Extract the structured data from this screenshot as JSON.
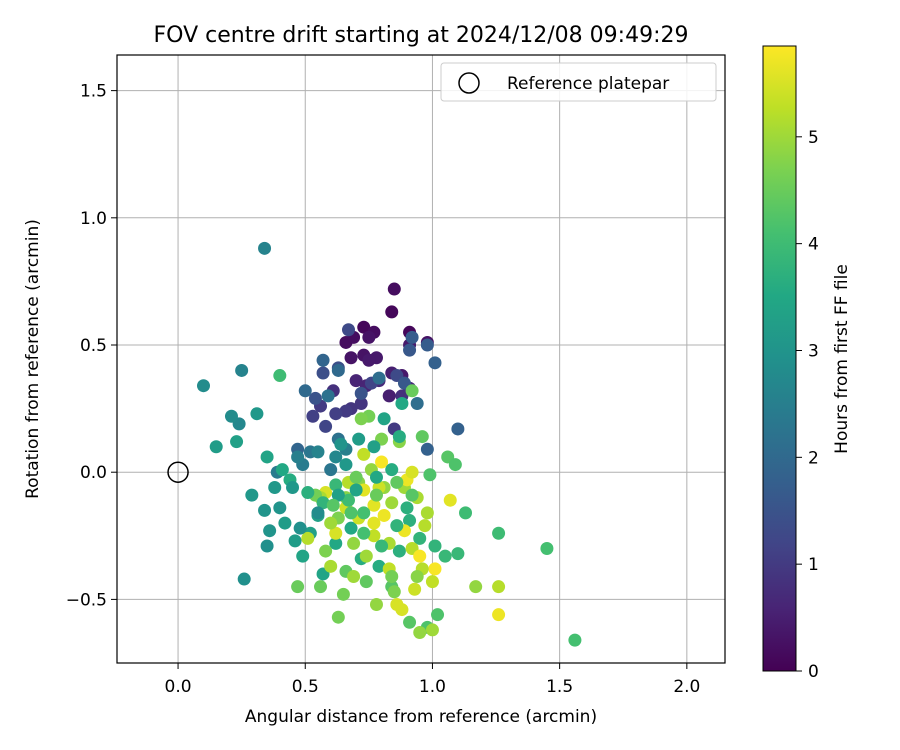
{
  "chart_data": {
    "type": "scatter",
    "title": "FOV centre drift starting at 2024/12/08 09:49:29",
    "xlabel": "Angular distance from reference (arcmin)",
    "ylabel": "Rotation from reference (arcmin)",
    "xlim": [
      -0.24,
      2.15
    ],
    "ylim": [
      -0.75,
      1.64
    ],
    "x_ticks": [
      0.0,
      0.5,
      1.0,
      1.5,
      2.0
    ],
    "x_tick_labels": [
      "0.0",
      "0.5",
      "1.0",
      "1.5",
      "2.0"
    ],
    "y_ticks": [
      -0.5,
      0.0,
      0.5,
      1.0,
      1.5
    ],
    "y_tick_labels": [
      "−0.5",
      "0.0",
      "0.5",
      "1.0",
      "1.5"
    ],
    "grid": true,
    "legend": {
      "placement": "top-right",
      "entries": [
        "Reference platepar"
      ]
    },
    "reference_point": {
      "x": 0.0,
      "y": 0.0,
      "marker": "open-circle"
    },
    "colorbar": {
      "label": "Hours from first FF file",
      "range": [
        0,
        5.85
      ],
      "ticks": [
        0,
        1,
        2,
        3,
        4,
        5
      ],
      "tick_labels": [
        "0",
        "1",
        "2",
        "3",
        "4",
        "5"
      ],
      "colormap": "viridis"
    },
    "points": [
      [
        0.85,
        0.72,
        0.2
      ],
      [
        0.84,
        0.63,
        0.1
      ],
      [
        0.73,
        0.57,
        0.1
      ],
      [
        0.91,
        0.55,
        0.1
      ],
      [
        0.77,
        0.55,
        0.2
      ],
      [
        0.66,
        0.51,
        0.2
      ],
      [
        0.69,
        0.53,
        0.2
      ],
      [
        0.75,
        0.53,
        0.3
      ],
      [
        0.98,
        0.51,
        0.3
      ],
      [
        0.91,
        0.5,
        0.4
      ],
      [
        0.68,
        0.45,
        0.3
      ],
      [
        0.73,
        0.46,
        0.3
      ],
      [
        0.78,
        0.45,
        0.4
      ],
      [
        0.75,
        0.44,
        0.4
      ],
      [
        0.88,
        0.38,
        0.4
      ],
      [
        0.84,
        0.39,
        0.5
      ],
      [
        0.83,
        0.3,
        0.5
      ],
      [
        0.7,
        0.36,
        0.6
      ],
      [
        0.74,
        0.34,
        0.6
      ],
      [
        0.79,
        0.36,
        0.7
      ],
      [
        0.91,
        0.33,
        0.7
      ],
      [
        0.88,
        0.3,
        0.8
      ],
      [
        0.61,
        0.32,
        0.8
      ],
      [
        0.68,
        0.25,
        0.9
      ],
      [
        0.72,
        0.27,
        0.9
      ],
      [
        0.56,
        0.26,
        1.0
      ],
      [
        0.66,
        0.24,
        1.0
      ],
      [
        0.62,
        0.23,
        1.1
      ],
      [
        0.53,
        0.22,
        1.1
      ],
      [
        0.85,
        0.17,
        1.0
      ],
      [
        0.58,
        0.18,
        1.2
      ],
      [
        0.76,
        0.35,
        1.2
      ],
      [
        0.86,
        0.38,
        1.3
      ],
      [
        0.67,
        0.56,
        1.3
      ],
      [
        0.63,
        0.41,
        1.4
      ],
      [
        0.57,
        0.39,
        1.4
      ],
      [
        0.54,
        0.29,
        1.5
      ],
      [
        0.72,
        0.31,
        1.5
      ],
      [
        0.89,
        0.35,
        1.6
      ],
      [
        0.91,
        0.48,
        1.6
      ],
      [
        0.98,
        0.5,
        1.7
      ],
      [
        0.92,
        0.53,
        1.7
      ],
      [
        1.1,
        0.17,
        1.8
      ],
      [
        1.01,
        0.43,
        1.8
      ],
      [
        0.98,
        0.09,
        1.8
      ],
      [
        0.47,
        0.09,
        1.9
      ],
      [
        0.57,
        0.44,
        1.9
      ],
      [
        0.5,
        0.32,
        2.0
      ],
      [
        0.63,
        0.4,
        2.0
      ],
      [
        0.79,
        0.37,
        2.1
      ],
      [
        0.94,
        0.27,
        2.1
      ],
      [
        0.63,
        0.13,
        2.2
      ],
      [
        0.59,
        0.3,
        2.2
      ],
      [
        0.52,
        0.08,
        2.3
      ],
      [
        0.6,
        0.01,
        2.3
      ],
      [
        0.39,
        0.0,
        2.4
      ],
      [
        0.49,
        0.03,
        2.4
      ],
      [
        0.66,
        0.09,
        2.5
      ],
      [
        0.34,
        0.88,
        2.6
      ],
      [
        0.25,
        0.4,
        2.6
      ],
      [
        0.24,
        0.19,
        2.7
      ],
      [
        0.21,
        0.22,
        2.8
      ],
      [
        0.1,
        0.34,
        2.8
      ],
      [
        0.26,
        -0.42,
        2.9
      ],
      [
        0.35,
        -0.29,
        2.9
      ],
      [
        0.36,
        -0.23,
        3.0
      ],
      [
        0.34,
        -0.15,
        3.0
      ],
      [
        0.29,
        -0.09,
        3.1
      ],
      [
        0.38,
        -0.06,
        3.1
      ],
      [
        0.42,
        -0.2,
        3.2
      ],
      [
        0.46,
        -0.27,
        3.2
      ],
      [
        0.52,
        -0.24,
        3.3
      ],
      [
        0.55,
        -0.17,
        3.3
      ],
      [
        0.49,
        -0.33,
        3.4
      ],
      [
        0.57,
        -0.4,
        3.4
      ],
      [
        0.62,
        -0.28,
        3.5
      ],
      [
        0.68,
        -0.22,
        3.5
      ],
      [
        0.72,
        -0.34,
        3.6
      ],
      [
        0.79,
        -0.37,
        3.6
      ],
      [
        0.87,
        -0.31,
        3.7
      ],
      [
        0.91,
        -0.19,
        3.7
      ],
      [
        0.95,
        -0.26,
        3.8
      ],
      [
        1.01,
        -0.29,
        3.8
      ],
      [
        1.05,
        -0.33,
        3.9
      ],
      [
        1.1,
        -0.32,
        3.9
      ],
      [
        1.13,
        -0.16,
        4.0
      ],
      [
        1.26,
        -0.24,
        4.0
      ],
      [
        1.45,
        -0.3,
        4.1
      ],
      [
        1.56,
        -0.66,
        4.1
      ],
      [
        1.02,
        -0.56,
        4.2
      ],
      [
        0.98,
        -0.61,
        4.2
      ],
      [
        0.91,
        -0.59,
        4.3
      ],
      [
        0.84,
        -0.45,
        4.3
      ],
      [
        0.74,
        -0.43,
        4.4
      ],
      [
        0.66,
        -0.39,
        4.4
      ],
      [
        0.56,
        -0.45,
        4.5
      ],
      [
        0.47,
        -0.45,
        4.5
      ],
      [
        0.63,
        -0.57,
        4.6
      ],
      [
        0.65,
        -0.48,
        4.6
      ],
      [
        0.58,
        -0.31,
        4.7
      ],
      [
        0.63,
        -0.18,
        4.7
      ],
      [
        0.66,
        -0.1,
        4.8
      ],
      [
        0.71,
        -0.04,
        4.8
      ],
      [
        0.76,
        0.01,
        4.9
      ],
      [
        0.81,
        -0.06,
        4.9
      ],
      [
        0.84,
        -0.12,
        5.0
      ],
      [
        0.89,
        -0.06,
        5.0
      ],
      [
        0.94,
        -0.1,
        5.1
      ],
      [
        0.98,
        -0.16,
        5.1
      ],
      [
        0.97,
        -0.21,
        5.2
      ],
      [
        0.92,
        -0.3,
        5.2
      ],
      [
        0.83,
        -0.38,
        5.3
      ],
      [
        0.77,
        -0.25,
        5.3
      ],
      [
        0.71,
        -0.18,
        5.4
      ],
      [
        0.66,
        -0.14,
        5.4
      ],
      [
        0.62,
        -0.24,
        5.5
      ],
      [
        0.58,
        -0.08,
        5.5
      ],
      [
        0.73,
        -0.07,
        5.6
      ],
      [
        0.77,
        -0.13,
        5.6
      ],
      [
        0.81,
        -0.17,
        5.7
      ],
      [
        0.89,
        -0.23,
        5.7
      ],
      [
        0.95,
        -0.33,
        5.8
      ],
      [
        1.01,
        -0.38,
        5.8
      ],
      [
        0.8,
        0.04,
        5.8
      ],
      [
        0.9,
        -0.03,
        5.7
      ],
      [
        0.77,
        -0.2,
        5.6
      ],
      [
        0.88,
        -0.54,
        5.5
      ],
      [
        1.26,
        -0.56,
        5.7
      ],
      [
        1.07,
        -0.11,
        5.6
      ],
      [
        0.92,
        0.0,
        5.5
      ],
      [
        0.79,
        -0.06,
        5.4
      ],
      [
        0.73,
        0.07,
        5.3
      ],
      [
        0.67,
        -0.04,
        5.2
      ],
      [
        0.56,
        -0.1,
        5.1
      ],
      [
        0.6,
        -0.2,
        5.0
      ],
      [
        0.69,
        -0.28,
        4.9
      ],
      [
        0.74,
        -0.33,
        5.0
      ],
      [
        0.83,
        -0.28,
        5.1
      ],
      [
        0.96,
        -0.38,
        5.2
      ],
      [
        1.0,
        -0.43,
        5.3
      ],
      [
        0.93,
        -0.46,
        5.4
      ],
      [
        0.86,
        -0.52,
        5.5
      ],
      [
        0.78,
        -0.52,
        4.9
      ],
      [
        0.69,
        -0.41,
        5.0
      ],
      [
        0.6,
        -0.37,
        5.1
      ],
      [
        0.51,
        -0.26,
        5.2
      ],
      [
        0.54,
        -0.09,
        4.6
      ],
      [
        0.7,
        -0.02,
        4.5
      ],
      [
        0.75,
        0.22,
        4.6
      ],
      [
        0.8,
        0.13,
        4.7
      ],
      [
        0.87,
        0.12,
        4.8
      ],
      [
        0.96,
        0.14,
        4.4
      ],
      [
        1.06,
        0.06,
        4.3
      ],
      [
        1.09,
        0.03,
        4.2
      ],
      [
        0.99,
        -0.01,
        4.2
      ],
      [
        0.92,
        -0.09,
        4.3
      ],
      [
        0.86,
        -0.04,
        4.4
      ],
      [
        0.78,
        -0.09,
        4.5
      ],
      [
        0.73,
        -0.16,
        4.1
      ],
      [
        0.67,
        -0.11,
        4.0
      ],
      [
        0.62,
        -0.05,
        3.9
      ],
      [
        0.57,
        -0.12,
        3.8
      ],
      [
        0.51,
        -0.08,
        3.7
      ],
      [
        0.44,
        -0.03,
        3.6
      ],
      [
        0.41,
        0.01,
        3.5
      ],
      [
        0.35,
        0.06,
        3.4
      ],
      [
        0.23,
        0.12,
        3.3
      ],
      [
        0.15,
        0.1,
        3.2
      ],
      [
        0.31,
        0.23,
        3.1
      ],
      [
        0.4,
        0.38,
        4.0
      ],
      [
        0.45,
        -0.06,
        3.1
      ],
      [
        0.4,
        -0.14,
        3.0
      ],
      [
        0.48,
        -0.22,
        2.9
      ],
      [
        0.55,
        -0.16,
        2.8
      ],
      [
        0.63,
        -0.09,
        3.3
      ],
      [
        0.7,
        -0.07,
        3.4
      ],
      [
        0.78,
        -0.02,
        3.5
      ],
      [
        0.84,
        0.01,
        3.6
      ],
      [
        0.9,
        -0.14,
        3.7
      ],
      [
        0.86,
        -0.21,
        3.8
      ],
      [
        0.8,
        -0.29,
        3.9
      ],
      [
        0.73,
        -0.24,
        4.1
      ],
      [
        0.68,
        -0.16,
        4.2
      ],
      [
        0.61,
        -0.13,
        4.3
      ],
      [
        0.84,
        -0.41,
        4.6
      ],
      [
        0.85,
        -0.47,
        4.7
      ],
      [
        0.94,
        -0.41,
        4.8
      ],
      [
        1.0,
        -0.62,
        5.0
      ],
      [
        1.17,
        -0.45,
        4.9
      ],
      [
        1.26,
        -0.45,
        5.2
      ],
      [
        0.95,
        -0.63,
        4.9
      ],
      [
        0.64,
        0.11,
        3.0
      ],
      [
        0.66,
        0.03,
        3.1
      ],
      [
        0.71,
        0.13,
        3.2
      ],
      [
        0.77,
        0.1,
        3.3
      ],
      [
        0.81,
        0.21,
        3.4
      ],
      [
        0.88,
        0.27,
        3.5
      ],
      [
        0.87,
        0.14,
        3.6
      ],
      [
        0.92,
        0.32,
        4.5
      ],
      [
        0.72,
        0.21,
        4.7
      ],
      [
        0.55,
        0.08,
        2.6
      ],
      [
        0.47,
        0.06,
        2.5
      ],
      [
        0.62,
        0.06,
        2.7
      ]
    ]
  }
}
